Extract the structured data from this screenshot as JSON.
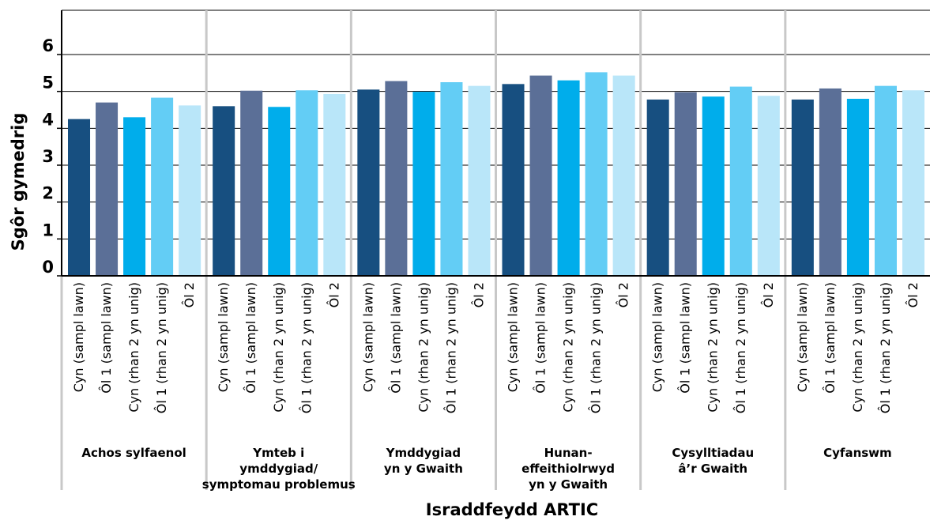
{
  "chart_data": {
    "type": "bar",
    "title": "",
    "ylabel": "Sgôr gymedrig",
    "xlabel": "Israddfeydd ARTIC",
    "ylim": [
      0,
      6
    ],
    "yticks": [
      0,
      1,
      2,
      3,
      4,
      5,
      6
    ],
    "grid": true,
    "legend": "none",
    "bar_labels": [
      "Cyn (sampl lawn)",
      "Ôl 1 (sampl lawn)",
      "Cyn (rhan 2 yn unig)",
      "Ôl 1 (rhan 2 yn unig)",
      "Ôl 2"
    ],
    "bar_colors": [
      "#174f80",
      "#5b6f97",
      "#00adeb",
      "#63cdf5",
      "#b9e6f9"
    ],
    "groups": [
      {
        "label": [
          "Achos sylfaenol"
        ],
        "values": [
          4.25,
          4.7,
          4.3,
          4.83,
          4.62
        ]
      },
      {
        "label": [
          "Ymteb i",
          "ymddygiad/",
          "symptomau problemus"
        ],
        "values": [
          4.6,
          5.02,
          4.58,
          5.03,
          4.93
        ]
      },
      {
        "label": [
          "Ymddygiad",
          "yn y Gwaith"
        ],
        "values": [
          5.05,
          5.28,
          4.99,
          5.25,
          5.15
        ]
      },
      {
        "label": [
          "Hunan-",
          "effeithiolrwyd",
          "yn y Gwaith"
        ],
        "values": [
          5.2,
          5.43,
          5.3,
          5.52,
          5.43
        ]
      },
      {
        "label": [
          "Cysylltiadau",
          "â’r Gwaith"
        ],
        "values": [
          4.78,
          4.98,
          4.86,
          5.13,
          4.88
        ]
      },
      {
        "label": [
          "Cyfanswm"
        ],
        "values": [
          4.78,
          5.08,
          4.8,
          5.15,
          5.03
        ]
      }
    ]
  }
}
